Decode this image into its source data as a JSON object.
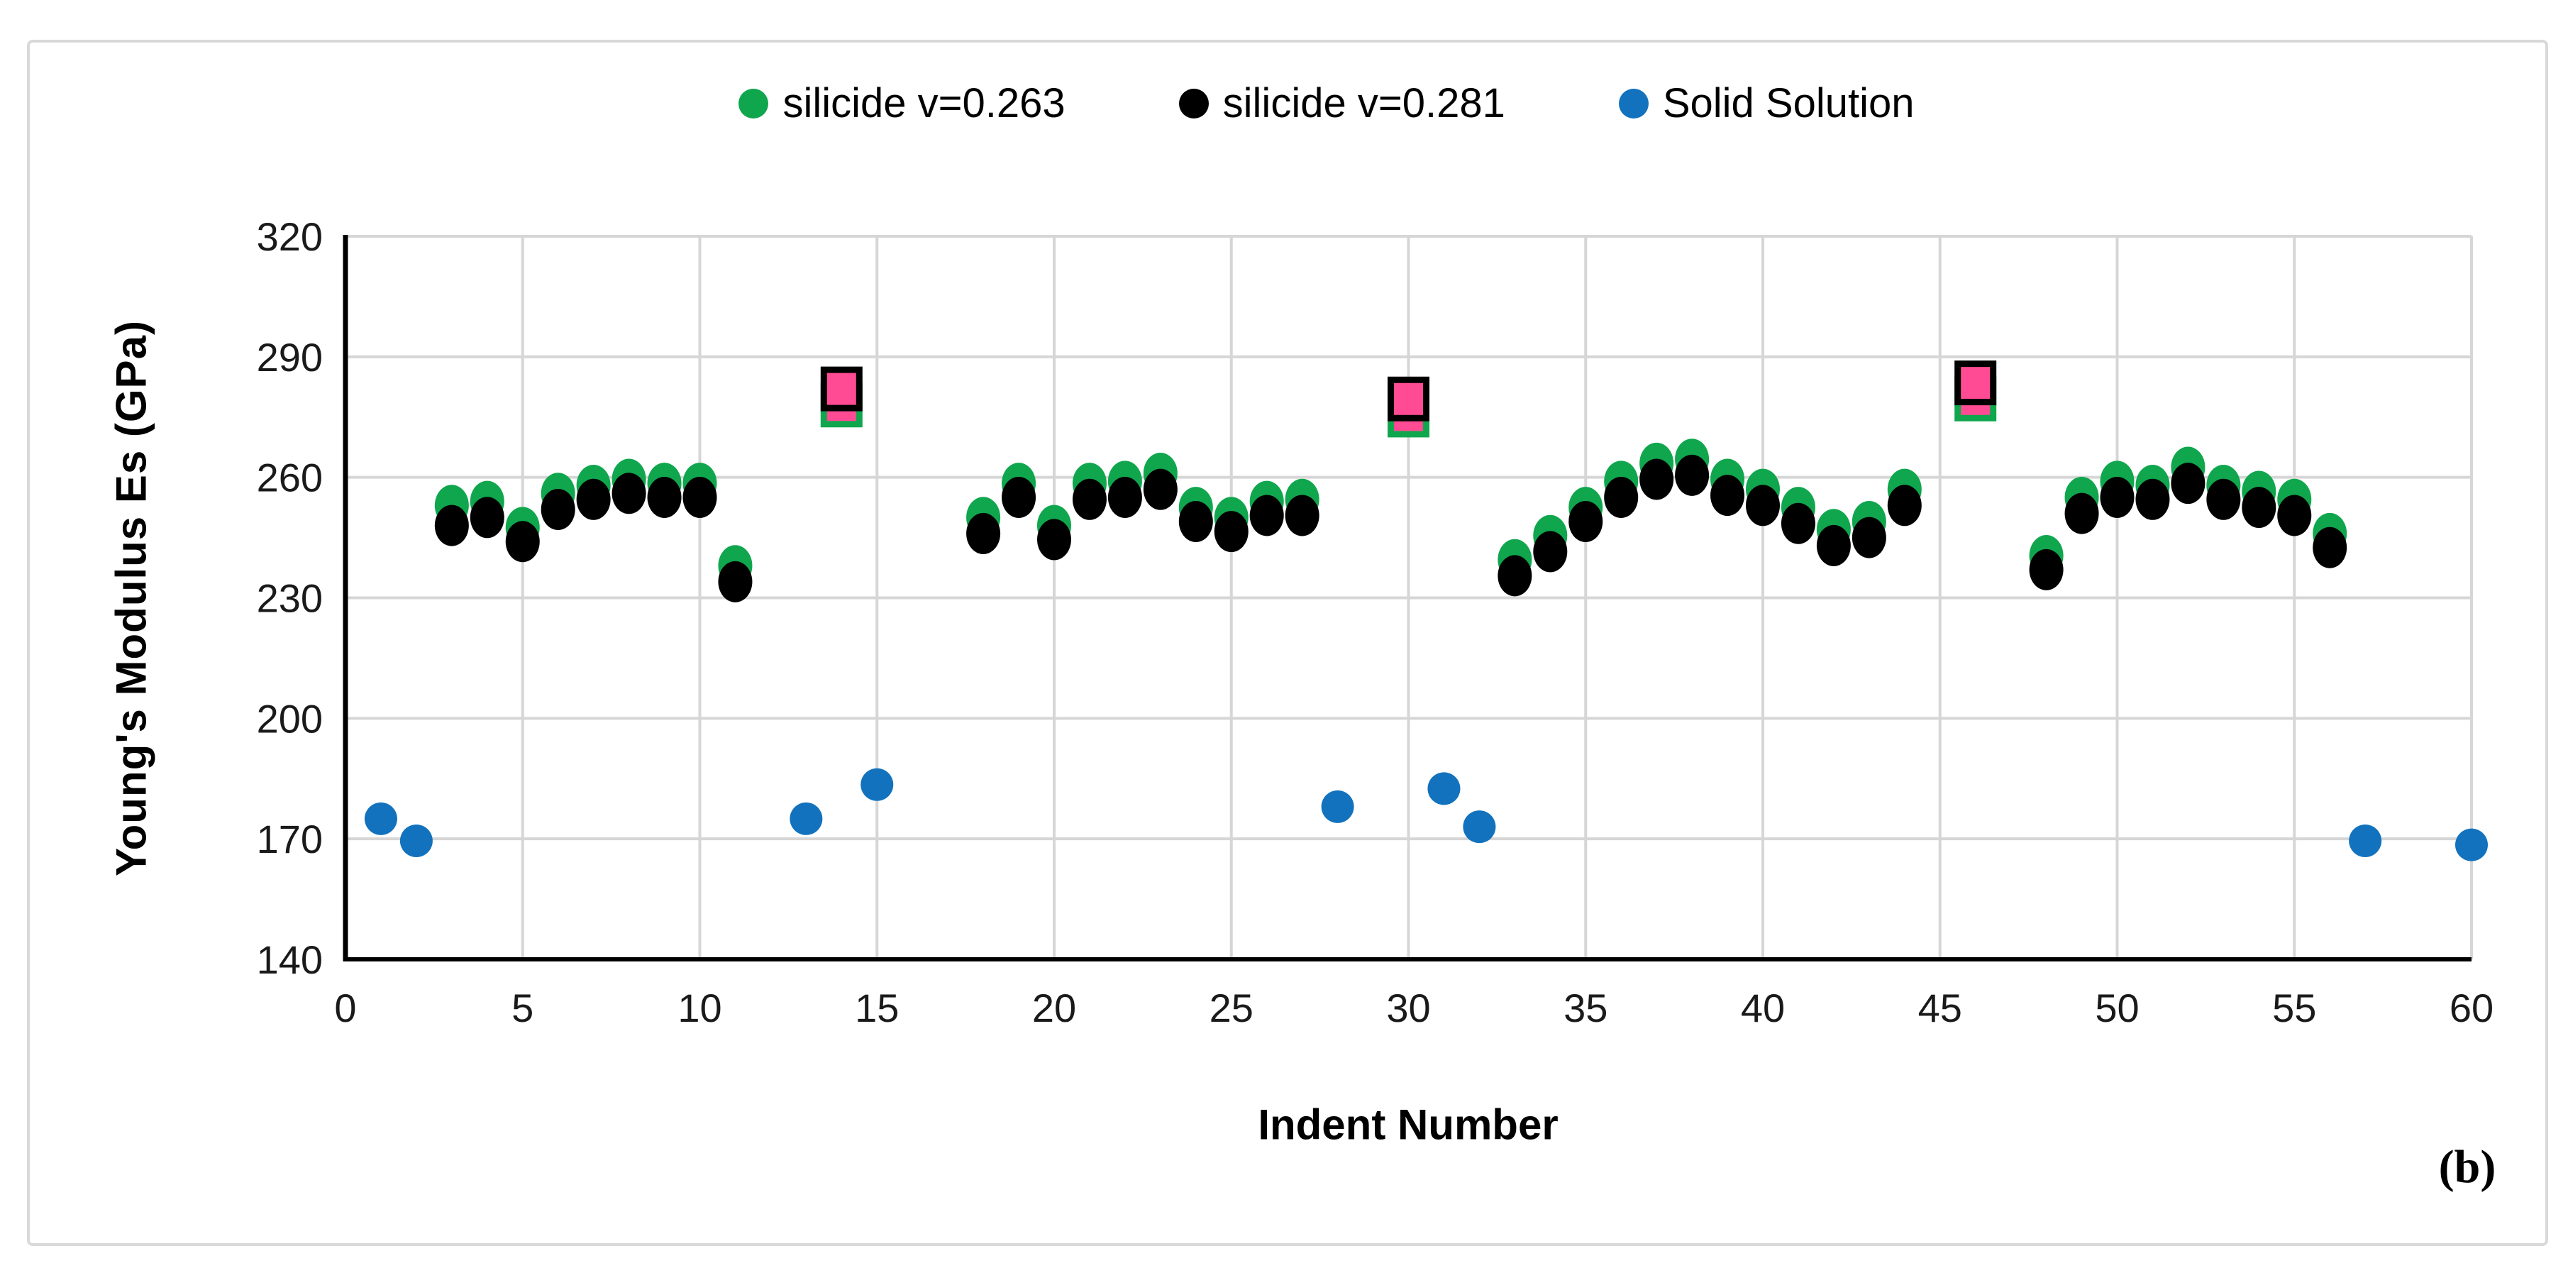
{
  "figure": {
    "panel_label": "(b)"
  },
  "chart_data": {
    "type": "scatter",
    "title": "",
    "xlabel": "Indent Number",
    "ylabel": "Young's Modulus Es (GPa)",
    "xlim": [
      0,
      60
    ],
    "ylim": [
      140,
      320
    ],
    "xticks": [
      0,
      5,
      10,
      15,
      20,
      25,
      30,
      35,
      40,
      45,
      50,
      55,
      60
    ],
    "yticks": [
      140,
      170,
      200,
      230,
      260,
      290,
      320
    ],
    "grid": true,
    "legend_position": "top-center",
    "colors": {
      "grid": "#d6d6d6",
      "axis": "#000000",
      "frame": "#d9d9d9",
      "green_series": "#10a64d",
      "black_series": "#000000",
      "blue_series": "#1272bd",
      "outlier_fill_pink": "#ff4b94"
    },
    "series": [
      {
        "name": "silicide v=0.263",
        "marker": "ellipse",
        "color": "#10a64d",
        "in_legend": true,
        "points": [
          [
            3,
            253
          ],
          [
            4,
            254
          ],
          [
            5,
            247.5
          ],
          [
            6,
            256
          ],
          [
            7,
            258
          ],
          [
            8,
            259.5
          ],
          [
            9,
            258.5
          ],
          [
            10,
            258.5
          ],
          [
            11,
            238
          ],
          [
            18,
            250
          ],
          [
            19,
            258.5
          ],
          [
            20,
            248
          ],
          [
            21,
            258.5
          ],
          [
            22,
            259
          ],
          [
            23,
            261
          ],
          [
            24,
            252.5
          ],
          [
            25,
            250
          ],
          [
            26,
            254
          ],
          [
            27,
            254.5
          ],
          [
            33,
            239.5
          ],
          [
            34,
            245.5
          ],
          [
            35,
            252.5
          ],
          [
            36,
            259
          ],
          [
            37,
            263.5
          ],
          [
            38,
            264.5
          ],
          [
            39,
            259.5
          ],
          [
            40,
            257
          ],
          [
            41,
            252.5
          ],
          [
            42,
            247
          ],
          [
            43,
            249
          ],
          [
            44,
            257
          ],
          [
            48,
            240.5
          ],
          [
            49,
            255
          ],
          [
            50,
            259
          ],
          [
            51,
            258
          ],
          [
            52,
            262.5
          ],
          [
            53,
            258
          ],
          [
            54,
            256.5
          ],
          [
            55,
            254.5
          ],
          [
            56,
            246
          ]
        ]
      },
      {
        "name": "silicide v=0.281",
        "marker": "ellipse",
        "color": "#000000",
        "in_legend": true,
        "points": [
          [
            3,
            248
          ],
          [
            4,
            250
          ],
          [
            5,
            244
          ],
          [
            6,
            252
          ],
          [
            7,
            254.5
          ],
          [
            8,
            256
          ],
          [
            9,
            255
          ],
          [
            10,
            255
          ],
          [
            11,
            234
          ],
          [
            18,
            246
          ],
          [
            19,
            255
          ],
          [
            20,
            244.5
          ],
          [
            21,
            254.5
          ],
          [
            22,
            255
          ],
          [
            23,
            257
          ],
          [
            24,
            249
          ],
          [
            25,
            246.5
          ],
          [
            26,
            250.5
          ],
          [
            27,
            250.5
          ],
          [
            33,
            235.5
          ],
          [
            34,
            241.5
          ],
          [
            35,
            249
          ],
          [
            36,
            255
          ],
          [
            37,
            259.5
          ],
          [
            38,
            260.5
          ],
          [
            39,
            255.5
          ],
          [
            40,
            253
          ],
          [
            41,
            248.5
          ],
          [
            42,
            243
          ],
          [
            43,
            245
          ],
          [
            44,
            253
          ],
          [
            48,
            237
          ],
          [
            49,
            251
          ],
          [
            50,
            255
          ],
          [
            51,
            254.5
          ],
          [
            52,
            258.5
          ],
          [
            53,
            254.5
          ],
          [
            54,
            252.5
          ],
          [
            55,
            250.5
          ],
          [
            56,
            242.5
          ]
        ]
      },
      {
        "name": "Solid Solution",
        "marker": "circle",
        "color": "#1272bd",
        "in_legend": true,
        "points": [
          [
            1,
            175
          ],
          [
            2,
            169.5
          ],
          [
            13,
            175
          ],
          [
            15,
            183.5
          ],
          [
            28,
            178
          ],
          [
            31,
            182.5
          ],
          [
            32,
            173
          ],
          [
            57,
            169.5
          ],
          [
            60,
            168.5
          ]
        ]
      },
      {
        "name": "pop-in outlier squares (green border)",
        "marker": "square",
        "color": "#10a64d",
        "fill": "#ff4b94",
        "in_legend": false,
        "points": [
          [
            14,
            278
          ],
          [
            30,
            275.5
          ],
          [
            46,
            279.5
          ]
        ]
      },
      {
        "name": "pop-in outlier squares (black border)",
        "marker": "square",
        "color": "#000000",
        "fill": "#ff4b94",
        "in_legend": false,
        "points": [
          [
            14,
            282
          ],
          [
            30,
            279.5
          ],
          [
            46,
            283.5
          ]
        ]
      }
    ]
  }
}
